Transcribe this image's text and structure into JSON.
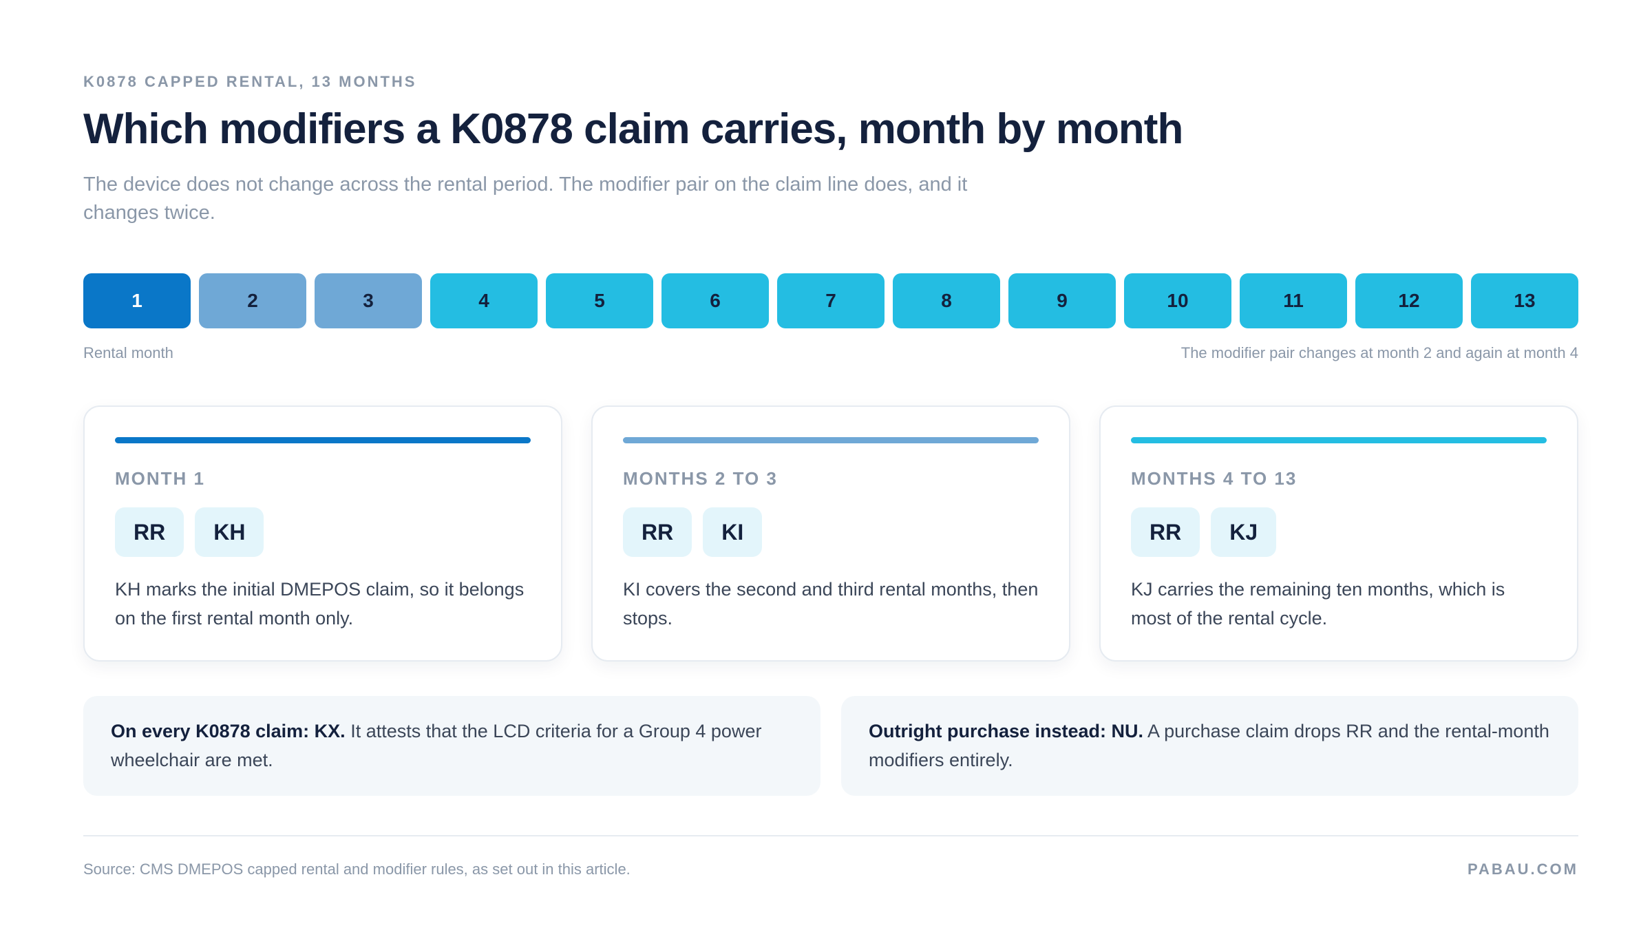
{
  "header": {
    "eyebrow": "K0878 CAPPED RENTAL, 13 MONTHS",
    "title": "Which modifiers a K0878 claim carries, month by month",
    "subtitle": "The device does not change across the rental period. The modifier pair on the claim line does, and it changes twice."
  },
  "timeline": {
    "months": [
      "1",
      "2",
      "3",
      "4",
      "5",
      "6",
      "7",
      "8",
      "9",
      "10",
      "11",
      "12",
      "13"
    ],
    "axis_label": "Rental month",
    "note": "The modifier pair changes at month 2 and again at month 4",
    "colors": {
      "phase1": "#0a77c8",
      "phase2": "#6fa8d6",
      "phase3": "#24bde2"
    }
  },
  "cards": [
    {
      "label": "MONTH 1",
      "modifiers": [
        "RR",
        "KH"
      ],
      "text": "KH marks the initial DMEPOS claim, so it belongs on the first rental month only."
    },
    {
      "label": "MONTHS 2 TO 3",
      "modifiers": [
        "RR",
        "KI"
      ],
      "text": "KI covers the second and third rental months, then stops."
    },
    {
      "label": "MONTHS 4 TO 13",
      "modifiers": [
        "RR",
        "KJ"
      ],
      "text": "KJ carries the remaining ten months, which is most of the rental cycle."
    }
  ],
  "notes": [
    {
      "bold": "On every K0878 claim: KX.",
      "text": " It attests that the LCD criteria for a Group 4 power wheelchair are met."
    },
    {
      "bold": "Outright purchase instead: NU.",
      "text": " A purchase claim drops RR and the rental-month modifiers entirely."
    }
  ],
  "footer": {
    "source": "Source: CMS DMEPOS capped rental and modifier rules, as set out in this article.",
    "brand": "PABAU.COM"
  }
}
